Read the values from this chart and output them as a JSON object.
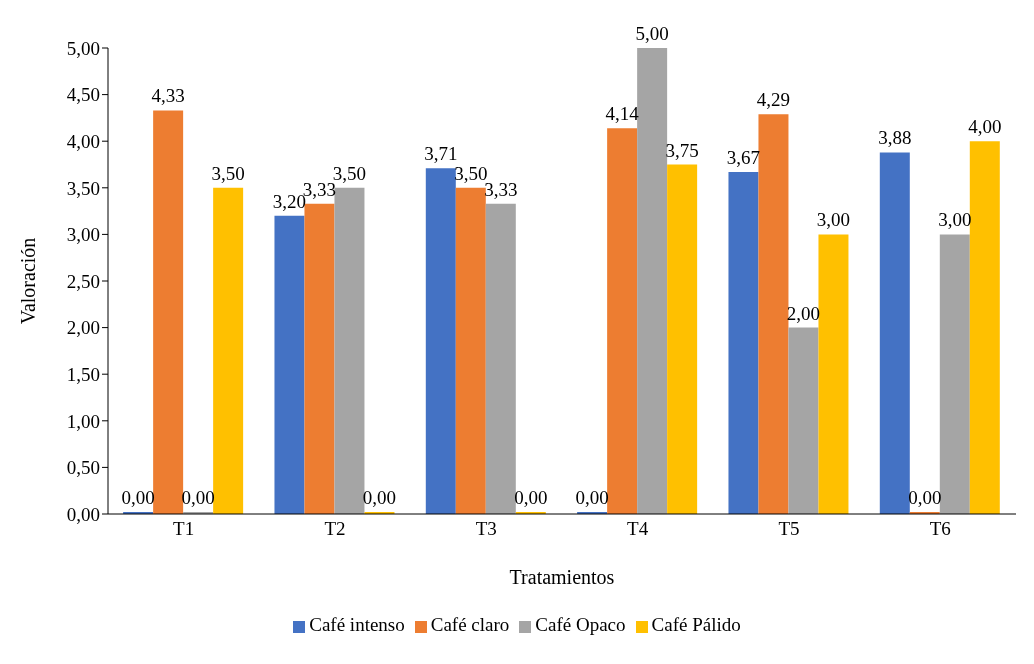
{
  "chart_data": {
    "type": "bar",
    "xlabel": "Tratamientos",
    "ylabel": "Valoración",
    "categories": [
      "T1",
      "T2",
      "T3",
      "T4",
      "T5",
      "T6"
    ],
    "series": [
      {
        "name": "Café intenso",
        "color": "#4472c4",
        "values": [
          0,
          3.2,
          3.71,
          0,
          3.67,
          3.88
        ],
        "value_labels": [
          "0,00",
          "3,20",
          "3,71",
          "0,00",
          "3,67",
          "3,88"
        ]
      },
      {
        "name": "Café claro",
        "color": "#ed7d31",
        "values": [
          4.33,
          3.33,
          3.5,
          4.14,
          4.29,
          0
        ],
        "value_labels": [
          "4,33",
          "3,33",
          "3,50",
          "4,14",
          "4,29",
          "0,00"
        ]
      },
      {
        "name": "Café Opaco",
        "color": "#a5a5a5",
        "values": [
          0,
          3.5,
          3.33,
          5,
          2,
          3
        ],
        "value_labels": [
          "0,00",
          "3,50",
          "3,33",
          "5,00",
          "2,00",
          "3,00"
        ]
      },
      {
        "name": "Café Pálido",
        "color": "#ffc000",
        "values": [
          3.5,
          0,
          0,
          3.75,
          3,
          4
        ],
        "value_labels": [
          "3,50",
          "0,00",
          "0,00",
          "3,75",
          "3,00",
          "4,00"
        ]
      }
    ],
    "ylim": [
      0,
      5
    ],
    "yticks": [
      {
        "value": 0,
        "label": "0,00"
      },
      {
        "value": 0.5,
        "label": "0,50"
      },
      {
        "value": 1,
        "label": "1,00"
      },
      {
        "value": 1.5,
        "label": "1,50"
      },
      {
        "value": 2,
        "label": "2,00"
      },
      {
        "value": 2.5,
        "label": "2,50"
      },
      {
        "value": 3,
        "label": "3,00"
      },
      {
        "value": 3.5,
        "label": "3,50"
      },
      {
        "value": 4,
        "label": "4,00"
      },
      {
        "value": 4.5,
        "label": "4,50"
      },
      {
        "value": 5,
        "label": "5,00"
      }
    ],
    "grid": false,
    "legend": "bottom"
  }
}
